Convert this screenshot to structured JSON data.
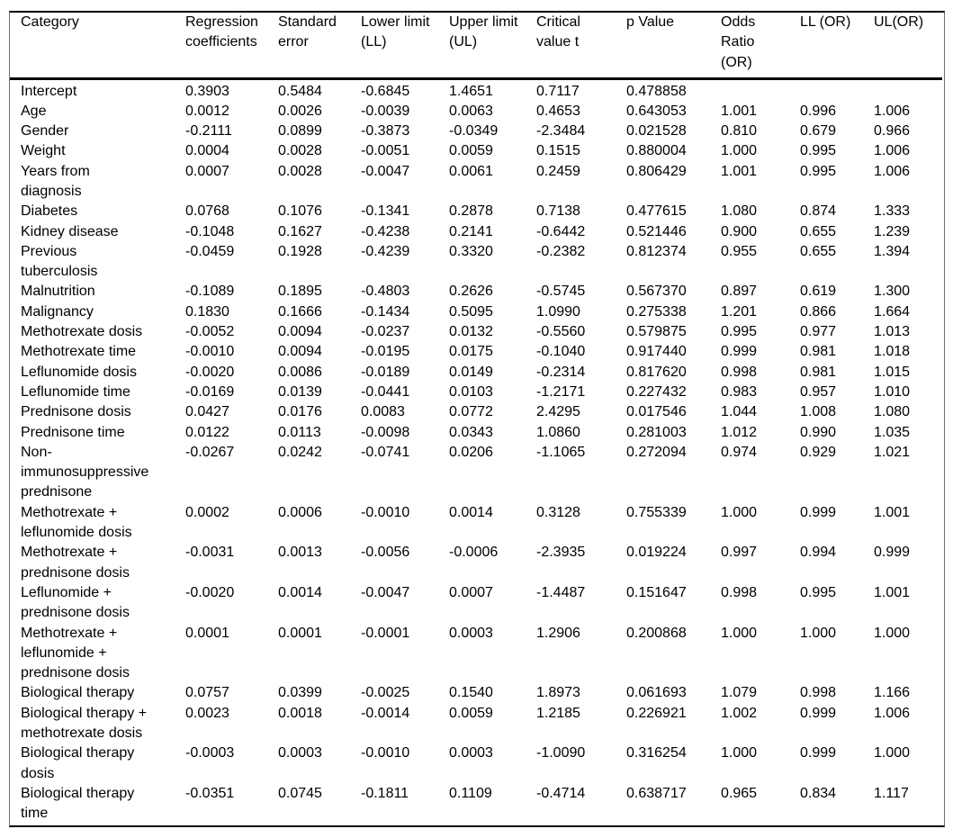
{
  "accent_colors": {
    "text": "#000000",
    "background": "#ffffff",
    "rule_heavy": "#000000",
    "rule_light": "#6e6e6e"
  },
  "table": {
    "columns": [
      {
        "key": "category",
        "label": "Category"
      },
      {
        "key": "coefficients",
        "label": "Regression coefficients"
      },
      {
        "key": "std_error",
        "label": "Standard error"
      },
      {
        "key": "lower_limit",
        "label": "Lower limit (LL)"
      },
      {
        "key": "upper_limit",
        "label": "Upper limit (UL)"
      },
      {
        "key": "critical_t",
        "label": "Critical value t"
      },
      {
        "key": "p_value",
        "label": "p Value"
      },
      {
        "key": "odds_ratio",
        "label": "Odds Ratio (OR)"
      },
      {
        "key": "ll_or",
        "label": "LL (OR)"
      },
      {
        "key": "ul_or",
        "label": "UL(OR)"
      }
    ],
    "rows": [
      [
        "Intercept",
        "0.3903",
        "0.5484",
        "-0.6845",
        "1.4651",
        "0.7117",
        "0.478858",
        "",
        "",
        ""
      ],
      [
        "Age",
        "0.0012",
        "0.0026",
        "-0.0039",
        "0.0063",
        "0.4653",
        "0.643053",
        "1.001",
        "0.996",
        "1.006"
      ],
      [
        "Gender",
        "-0.2111",
        "0.0899",
        "-0.3873",
        "-0.0349",
        "-2.3484",
        "0.021528",
        "0.810",
        "0.679",
        "0.966"
      ],
      [
        "Weight",
        "0.0004",
        "0.0028",
        "-0.0051",
        "0.0059",
        "0.1515",
        "0.880004",
        "1.000",
        "0.995",
        "1.006"
      ],
      [
        "Years from diagnosis",
        "0.0007",
        "0.0028",
        "-0.0047",
        "0.0061",
        "0.2459",
        "0.806429",
        "1.001",
        "0.995",
        "1.006"
      ],
      [
        "Diabetes",
        "0.0768",
        "0.1076",
        "-0.1341",
        "0.2878",
        "0.7138",
        "0.477615",
        "1.080",
        "0.874",
        "1.333"
      ],
      [
        "Kidney disease",
        "-0.1048",
        "0.1627",
        "-0.4238",
        "0.2141",
        "-0.6442",
        "0.521446",
        "0.900",
        "0.655",
        "1.239"
      ],
      [
        "Previous tuberculosis",
        "-0.0459",
        "0.1928",
        "-0.4239",
        "0.3320",
        "-0.2382",
        "0.812374",
        "0.955",
        "0.655",
        "1.394"
      ],
      [
        "Malnutrition",
        "-0.1089",
        "0.1895",
        "-0.4803",
        "0.2626",
        "-0.5745",
        "0.567370",
        "0.897",
        "0.619",
        "1.300"
      ],
      [
        "Malignancy",
        "0.1830",
        "0.1666",
        "-0.1434",
        "0.5095",
        "1.0990",
        "0.275338",
        "1.201",
        "0.866",
        "1.664"
      ],
      [
        "Methotrexate dosis",
        "-0.0052",
        "0.0094",
        "-0.0237",
        "0.0132",
        "-0.5560",
        "0.579875",
        "0.995",
        "0.977",
        "1.013"
      ],
      [
        "Methotrexate time",
        "-0.0010",
        "0.0094",
        "-0.0195",
        "0.0175",
        "-0.1040",
        "0.917440",
        "0.999",
        "0.981",
        "1.018"
      ],
      [
        "Leflunomide dosis",
        "-0.0020",
        "0.0086",
        "-0.0189",
        "0.0149",
        "-0.2314",
        "0.817620",
        "0.998",
        "0.981",
        "1.015"
      ],
      [
        "Leflunomide time",
        "-0.0169",
        "0.0139",
        "-0.0441",
        "0.0103",
        "-1.2171",
        "0.227432",
        "0.983",
        "0.957",
        "1.010"
      ],
      [
        "Prednisone dosis",
        "0.0427",
        "0.0176",
        "0.0083",
        "0.0772",
        "2.4295",
        "0.017546",
        "1.044",
        "1.008",
        "1.080"
      ],
      [
        "Prednisone time",
        "0.0122",
        "0.0113",
        "-0.0098",
        "0.0343",
        "1.0860",
        "0.281003",
        "1.012",
        "0.990",
        "1.035"
      ],
      [
        "Non-immunosuppressive prednisone",
        "-0.0267",
        "0.0242",
        "-0.0741",
        "0.0206",
        "-1.1065",
        "0.272094",
        "0.974",
        "0.929",
        "1.021"
      ],
      [
        "Methotrexate + leflunomide dosis",
        "0.0002",
        "0.0006",
        "-0.0010",
        "0.0014",
        "0.3128",
        "0.755339",
        "1.000",
        "0.999",
        "1.001"
      ],
      [
        "Methotrexate + prednisone dosis",
        "-0.0031",
        "0.0013",
        "-0.0056",
        "-0.0006",
        "-2.3935",
        "0.019224",
        "0.997",
        "0.994",
        "0.999"
      ],
      [
        "Leflunomide + prednisone dosis",
        "-0.0020",
        "0.0014",
        "-0.0047",
        "0.0007",
        "-1.4487",
        "0.151647",
        "0.998",
        "0.995",
        "1.001"
      ],
      [
        "Methotrexate + leflunomide + prednisone dosis",
        "0.0001",
        "0.0001",
        "-0.0001",
        "0.0003",
        "1.2906",
        "0.200868",
        "1.000",
        "1.000",
        "1.000"
      ],
      [
        "Biological therapy",
        "0.0757",
        "0.0399",
        "-0.0025",
        "0.1540",
        "1.8973",
        "0.061693",
        "1.079",
        "0.998",
        "1.166"
      ],
      [
        "Biological therapy + methotrexate dosis",
        "0.0023",
        "0.0018",
        "-0.0014",
        "0.0059",
        "1.2185",
        "0.226921",
        "1.002",
        "0.999",
        "1.006"
      ],
      [
        "Biological therapy dosis",
        "-0.0003",
        "0.0003",
        "-0.0010",
        "0.0003",
        "-1.0090",
        "0.316254",
        "1.000",
        "0.999",
        "1.000"
      ],
      [
        "Biological therapy time",
        "-0.0351",
        "0.0745",
        "-0.1811",
        "0.1109",
        "-0.4714",
        "0.638717",
        "0.965",
        "0.834",
        "1.117"
      ]
    ]
  }
}
